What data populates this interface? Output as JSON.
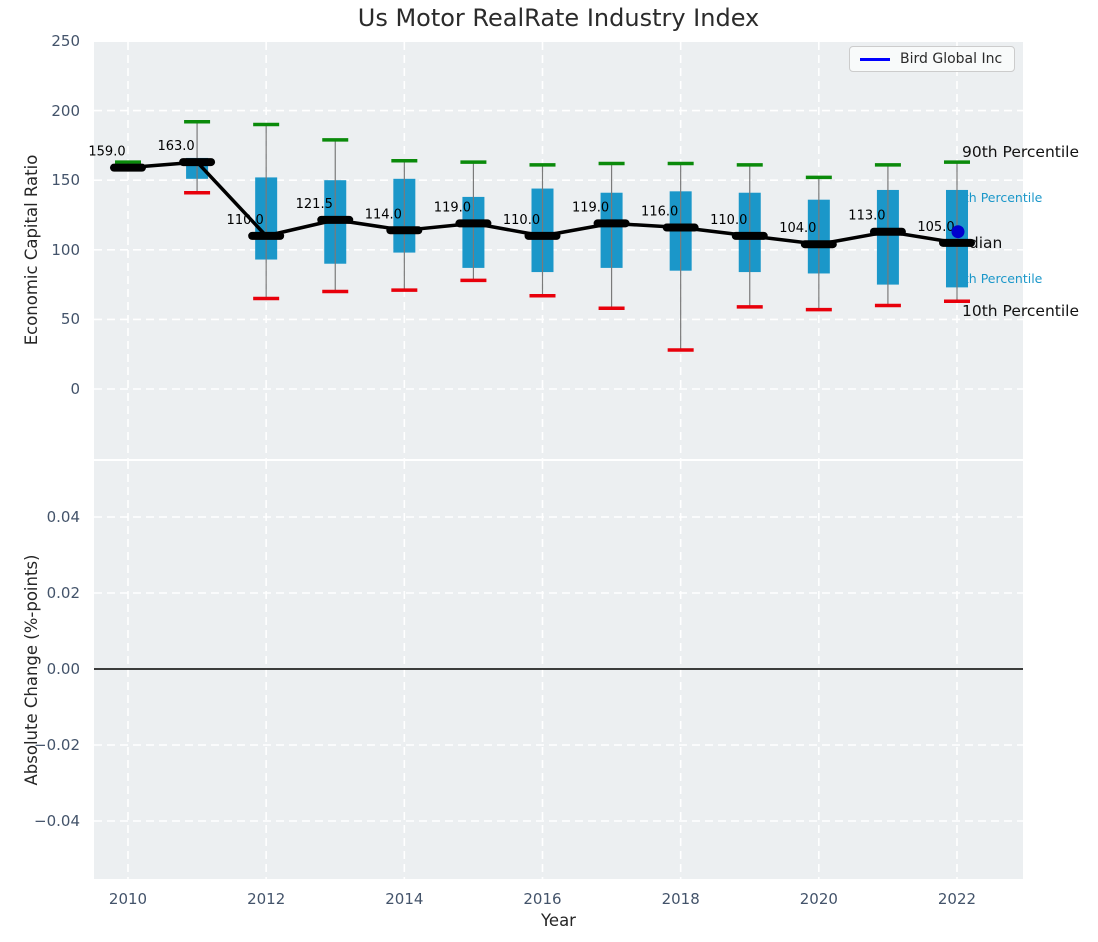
{
  "title": "Us Motor RealRate Industry Index",
  "legend": {
    "label": "Bird Global Inc"
  },
  "axes": {
    "top_ylabel": "Economic Capital Ratio",
    "bottom_ylabel": "Absolute Change (%-points)",
    "xlabel": "Year"
  },
  "annotations": {
    "p90": "90th Percentile",
    "p75": "75th Percentile",
    "median": "Median",
    "p25": "25th Percentile",
    "p10": "10th Percentile"
  },
  "colors": {
    "box": "#1b97c9",
    "p90_cap": "#0a8a0a",
    "p10_cap": "#e8000b",
    "median_line": "#000000",
    "whisker": "#7a7a7a",
    "company": "#0000cd",
    "legend_line": "#0000ff",
    "plot_bg": "#eceff1",
    "grid": "#ffffff",
    "zero_line": "#000000",
    "tick_text": "#43536a",
    "label_text": "#262626"
  },
  "chart_data": [
    {
      "type": "box-percentile-timeseries",
      "title": "Us Motor RealRate Industry Index",
      "xlabel": "Year",
      "ylabel": "Economic Capital Ratio",
      "ylim": [
        -50,
        250
      ],
      "yticks": [
        0,
        50,
        100,
        150,
        200,
        250
      ],
      "xticks": [
        2010,
        2012,
        2014,
        2016,
        2018,
        2020,
        2022
      ],
      "grid": true,
      "legend_entries": [
        "Bird Global Inc"
      ],
      "legend_position": "top-right",
      "years": [
        2010,
        2011,
        2012,
        2013,
        2014,
        2015,
        2016,
        2017,
        2018,
        2019,
        2020,
        2021,
        2022
      ],
      "series": [
        {
          "name": "90th Percentile",
          "values": [
            163,
            192,
            190,
            179,
            164,
            163,
            161,
            162,
            162,
            161,
            152,
            161,
            163
          ]
        },
        {
          "name": "75th Percentile",
          "values": [
            160,
            166,
            152,
            150,
            151,
            138,
            144,
            141,
            142,
            141,
            136,
            143,
            143
          ]
        },
        {
          "name": "Median",
          "values": [
            159,
            163,
            110,
            121.5,
            114,
            119,
            110,
            119,
            116,
            110,
            104,
            113,
            105
          ]
        },
        {
          "name": "25th Percentile",
          "values": [
            158,
            151,
            93,
            90,
            98,
            87,
            84,
            87,
            85,
            84,
            83,
            75,
            73
          ]
        },
        {
          "name": "10th Percentile",
          "values": [
            157.5,
            141,
            65,
            70,
            71,
            78,
            67,
            58,
            28,
            59,
            57,
            60,
            63
          ]
        }
      ],
      "median_labels": [
        "159.0",
        "163.0",
        "110.0",
        "121.5",
        "114.0",
        "119.0",
        "110.0",
        "119.0",
        "116.0",
        "110.0",
        "104.0",
        "113.0",
        "105.0"
      ],
      "company_point": {
        "name": "Bird Global Inc",
        "year": 2022,
        "value": 113
      }
    },
    {
      "type": "line",
      "xlabel": "Year",
      "ylabel": "Absolute Change (%-points)",
      "ylim": [
        -0.055,
        0.055
      ],
      "ytick_labels": [
        "0.04",
        "0.02",
        "0.00",
        "−0.02",
        "−0.04"
      ],
      "ytick_values": [
        0.04,
        0.02,
        0.0,
        -0.02,
        -0.04
      ],
      "xticks": [
        2010,
        2012,
        2014,
        2016,
        2018,
        2020,
        2022
      ],
      "grid": true,
      "zero_line": 0.0,
      "series": []
    }
  ]
}
